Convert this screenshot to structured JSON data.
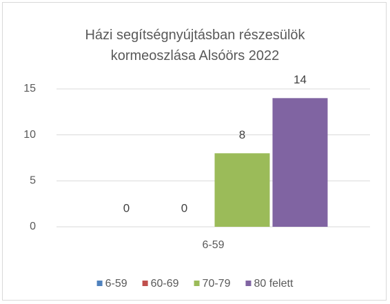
{
  "chart_data": {
    "type": "bar",
    "title": "Házi segítségnyújtásban részesülök\nkormeoszlása  Alsóörs 2022",
    "categories": [
      "6-59"
    ],
    "series": [
      {
        "name": "6-59",
        "color": "#4f81bd",
        "values": [
          0
        ]
      },
      {
        "name": "60-69",
        "color": "#c0504d",
        "values": [
          0
        ]
      },
      {
        "name": "70-79",
        "color": "#9bbb59",
        "values": [
          8
        ]
      },
      {
        "name": "80 felett",
        "color": "#8064a2",
        "values": [
          14
        ]
      }
    ],
    "ylim": [
      0,
      15
    ],
    "yticks": [
      0,
      5,
      10,
      15
    ],
    "grid": true,
    "legend": "bottom"
  }
}
